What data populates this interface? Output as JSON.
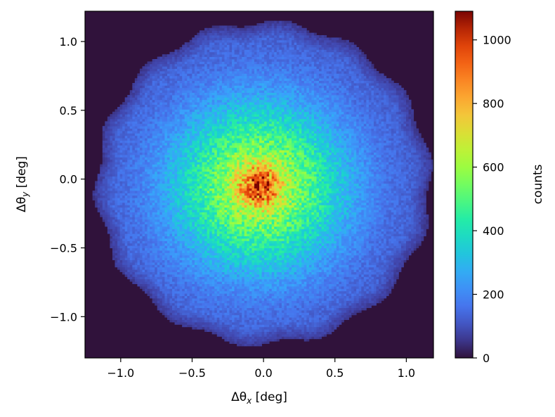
{
  "chart_data": {
    "type": "heatmap",
    "title": "",
    "xlabel": "Δθ",
    "xlabel_sub": "x",
    "xlabel_unit": " [deg]",
    "ylabel": "Δθ",
    "ylabel_sub": "y",
    "ylabel_unit": " [deg]",
    "xlim": [
      -1.25,
      1.19
    ],
    "ylim": [
      -1.3,
      1.22
    ],
    "xticks": [
      -1.0,
      -0.5,
      0.0,
      0.5,
      1.0
    ],
    "xtick_labels": [
      "−1.0",
      "−0.5",
      "0.0",
      "0.5",
      "1.0"
    ],
    "yticks": [
      -1.0,
      -0.5,
      0.0,
      0.5,
      1.0
    ],
    "ytick_labels": [
      "−1.0",
      "−0.5",
      "0.0",
      "0.5",
      "1.0"
    ],
    "colorbar": {
      "label": "counts",
      "range": [
        0,
        1090
      ],
      "ticks": [
        0,
        200,
        400,
        600,
        800,
        1000
      ],
      "tick_labels": [
        "0",
        "200",
        "400",
        "600",
        "800",
        "1000"
      ],
      "colormap": "turbo"
    },
    "distribution": {
      "shape": "disk",
      "center": [
        0.0,
        -0.03
      ],
      "radius_deg": 1.17,
      "peak_counts": 1050,
      "peak_location": [
        -0.03,
        -0.05
      ],
      "background_counts": 0,
      "edge_counts": 110
    },
    "grid": false,
    "background_color": "#30123b"
  }
}
